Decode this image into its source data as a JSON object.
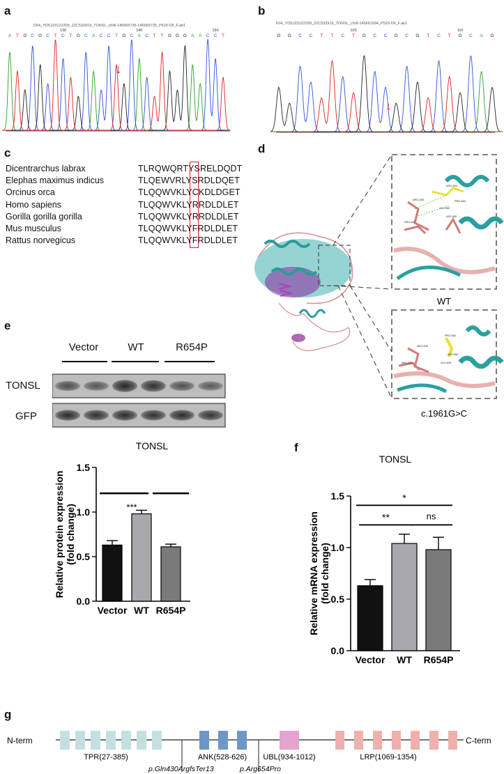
{
  "panels": {
    "a": {
      "letter": "a",
      "file_label": "D04_YDSJ23122209_22C532919_TONSL_chr8-145665735-145665735_P520-D5_F.ab1",
      "bases": [
        "A",
        "T",
        "G",
        "C",
        "G",
        "C",
        "T",
        "C",
        "T",
        "G",
        "C",
        "A",
        "C",
        "C",
        "T",
        "G",
        "C",
        "A",
        "C",
        "T",
        "T",
        "G",
        "G",
        "G",
        "A",
        "A",
        "C",
        "C",
        "T"
      ],
      "position_labels": [
        "130",
        "140",
        "150"
      ],
      "arrow": "↓"
    },
    "b": {
      "letter": "b",
      "file_label": "F04_YDSJ23122209_22C532919_TONSL_chr8-145661994_P520-D6_F.ab1",
      "bases": [
        "G",
        "G",
        "C",
        "C",
        "T",
        "T",
        "C",
        "T",
        "G",
        "C",
        "C",
        "G",
        "C",
        "G",
        "T",
        "C",
        "T",
        "G",
        "C",
        "A",
        "G"
      ],
      "position_labels": [
        "100",
        "110"
      ],
      "arrow": "↓"
    },
    "c": {
      "letter": "c",
      "alignment": [
        {
          "species": "Dicentrarchus labrax",
          "sequence": "TLRQWQRTYSRELDQDT"
        },
        {
          "species": "Elephas maximus indicus",
          "sequence": "TLQEWVRLYSRDLDQET"
        },
        {
          "species": "Orcinus orca",
          "sequence": "TLQQWVKLYCKDLDGET"
        },
        {
          "species": "Homo sapiens",
          "sequence": "TLQQWVKLYRRDLDLET"
        },
        {
          "species": "Gorilla gorilla gorilla",
          "sequence": "TLQQWVKLYRRDLDLET"
        },
        {
          "species": "Mus musculus",
          "sequence": "TLQQWVKLYFRDLDLET"
        },
        {
          "species": "Rattus norvegicus",
          "sequence": "TLQQWVKLYFRDLDLET"
        }
      ]
    },
    "d": {
      "letter": "d",
      "label_wt": "WT",
      "label_mut": "c.1961G>C",
      "residue_labels_wt": [
        "ARG-654",
        "ARG-645",
        "ARG-647",
        "GLU-649",
        "ASP-650",
        "PRO-660"
      ],
      "residue_labels_mut": [
        "PRO-654",
        "ARG-645",
        "ARG-647",
        "GLU-649",
        "ASP-650"
      ]
    },
    "e": {
      "letter": "e",
      "groups": [
        "Vector",
        "WT",
        "R654P"
      ],
      "blot_rows": [
        "TONSL",
        "GFP"
      ]
    },
    "g": {
      "letter": "g",
      "n_term": "N-term",
      "c_term": "C-term",
      "domains": [
        {
          "label": "TPR(27-385)",
          "color": "#c5dfe0"
        },
        {
          "label": "ANK(528-626)",
          "color": "#6e97c7"
        },
        {
          "label": "UBL(934-1012)",
          "color": "#e5a3cf"
        },
        {
          "label": "LRP(1069-1354)",
          "color": "#f0b0ac"
        }
      ],
      "variants": [
        "p.Gln430ArgfsTer13",
        "p.Arg654Pro"
      ]
    },
    "f": {
      "letter": "f"
    }
  },
  "chart_data": [
    {
      "type": "bar",
      "panel": "e",
      "title": "TONSL",
      "categories": [
        "Vector",
        "WT",
        "R654P"
      ],
      "values": [
        0.63,
        0.98,
        0.61
      ],
      "errors": [
        0.05,
        0.04,
        0.03
      ],
      "colors": [
        "#111111",
        "#a8a8ad",
        "#7a7a7a"
      ],
      "ylabel": "Relative protein expression (fold change)",
      "ylim": [
        0,
        1.5
      ],
      "yticks": [
        "0.0",
        "0.5",
        "1.0",
        "1.5"
      ],
      "significance": "***"
    },
    {
      "type": "bar",
      "panel": "f",
      "title": "TONSL",
      "categories": [
        "Vector",
        "WT",
        "R654P"
      ],
      "values": [
        0.63,
        1.04,
        0.98
      ],
      "errors": [
        0.06,
        0.09,
        0.12
      ],
      "colors": [
        "#111111",
        "#a8a8ad",
        "#7a7a7a"
      ],
      "ylabel": "Relative mRNA expression (fold change)",
      "ylim": [
        0,
        1.5
      ],
      "yticks": [
        "0.0",
        "0.5",
        "1.0",
        "1.5"
      ],
      "significance": [
        "*",
        "**",
        "ns"
      ]
    }
  ]
}
